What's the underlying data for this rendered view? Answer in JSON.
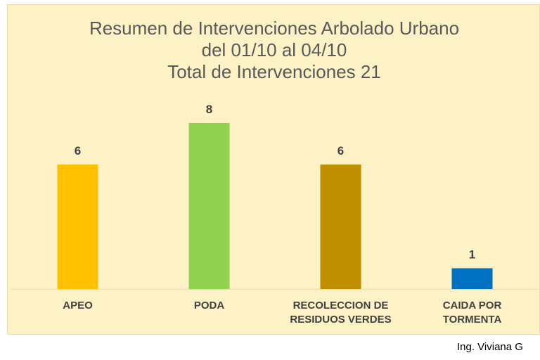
{
  "chart_data": {
    "type": "bar",
    "title_lines": [
      "Resumen de Intervenciones Arbolado Urbano",
      "del 01/10 al 04/10",
      "Total de Intervenciones 21"
    ],
    "categories": [
      [
        "APEO"
      ],
      [
        "PODA"
      ],
      [
        "RECOLECCION DE",
        "RESIDUOS VERDES"
      ],
      [
        "CAIDA POR",
        "TORMENTA"
      ]
    ],
    "values": [
      6,
      8,
      6,
      1
    ],
    "colors": [
      "#ffc000",
      "#92d050",
      "#bf8f00",
      "#0070c0"
    ],
    "ylim": [
      0,
      8
    ],
    "grid": false,
    "legend": "none"
  },
  "style": {
    "background": "#fdf1c6",
    "title_color": "#595959",
    "label_color": "#404040"
  },
  "footer": {
    "author": "Ing. Viviana G"
  }
}
